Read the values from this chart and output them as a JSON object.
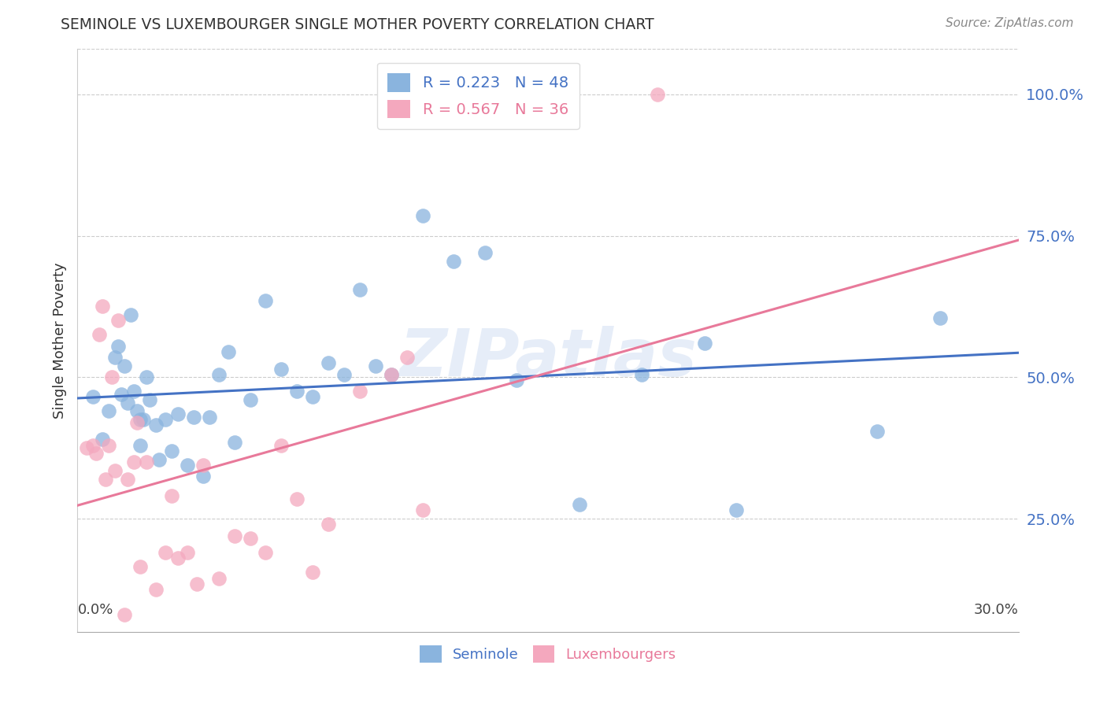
{
  "title": "SEMINOLE VS LUXEMBOURGER SINGLE MOTHER POVERTY CORRELATION CHART",
  "source": "Source: ZipAtlas.com",
  "ylabel": "Single Mother Poverty",
  "ytick_values": [
    0.25,
    0.5,
    0.75,
    1.0
  ],
  "xlim": [
    0.0,
    0.3
  ],
  "ylim": [
    0.05,
    1.08
  ],
  "legend_blue_r": "R = 0.223",
  "legend_blue_n": "N = 48",
  "legend_pink_r": "R = 0.567",
  "legend_pink_n": "N = 36",
  "blue_color": "#8ab4de",
  "pink_color": "#f4a8be",
  "blue_line_color": "#4472c4",
  "pink_line_color": "#e8799a",
  "watermark": "ZIPatlas",
  "grid_color": "#cccccc",
  "seminole_x": [
    0.005,
    0.008,
    0.01,
    0.012,
    0.013,
    0.014,
    0.015,
    0.016,
    0.017,
    0.018,
    0.019,
    0.02,
    0.02,
    0.021,
    0.022,
    0.023,
    0.025,
    0.026,
    0.028,
    0.03,
    0.032,
    0.035,
    0.037,
    0.04,
    0.042,
    0.045,
    0.048,
    0.05,
    0.055,
    0.06,
    0.065,
    0.07,
    0.075,
    0.08,
    0.085,
    0.09,
    0.095,
    0.1,
    0.11,
    0.12,
    0.13,
    0.14,
    0.16,
    0.18,
    0.2,
    0.21,
    0.255,
    0.275
  ],
  "seminole_y": [
    0.465,
    0.39,
    0.44,
    0.535,
    0.555,
    0.47,
    0.52,
    0.455,
    0.61,
    0.475,
    0.44,
    0.38,
    0.425,
    0.425,
    0.5,
    0.46,
    0.415,
    0.355,
    0.425,
    0.37,
    0.435,
    0.345,
    0.43,
    0.325,
    0.43,
    0.505,
    0.545,
    0.385,
    0.46,
    0.635,
    0.515,
    0.475,
    0.465,
    0.525,
    0.505,
    0.655,
    0.52,
    0.505,
    0.785,
    0.705,
    0.72,
    0.495,
    0.275,
    0.505,
    0.56,
    0.265,
    0.405,
    0.605
  ],
  "luxembourger_x": [
    0.003,
    0.005,
    0.006,
    0.007,
    0.008,
    0.009,
    0.01,
    0.011,
    0.012,
    0.013,
    0.015,
    0.016,
    0.018,
    0.019,
    0.02,
    0.022,
    0.025,
    0.028,
    0.03,
    0.032,
    0.035,
    0.038,
    0.04,
    0.045,
    0.05,
    0.055,
    0.06,
    0.065,
    0.07,
    0.075,
    0.08,
    0.09,
    0.1,
    0.105,
    0.11,
    0.185
  ],
  "luxembourger_y": [
    0.375,
    0.38,
    0.365,
    0.575,
    0.625,
    0.32,
    0.38,
    0.5,
    0.335,
    0.6,
    0.08,
    0.32,
    0.35,
    0.42,
    0.165,
    0.35,
    0.125,
    0.19,
    0.29,
    0.18,
    0.19,
    0.135,
    0.345,
    0.145,
    0.22,
    0.215,
    0.19,
    0.38,
    0.285,
    0.155,
    0.24,
    0.475,
    0.505,
    0.535,
    0.265,
    1.0
  ]
}
